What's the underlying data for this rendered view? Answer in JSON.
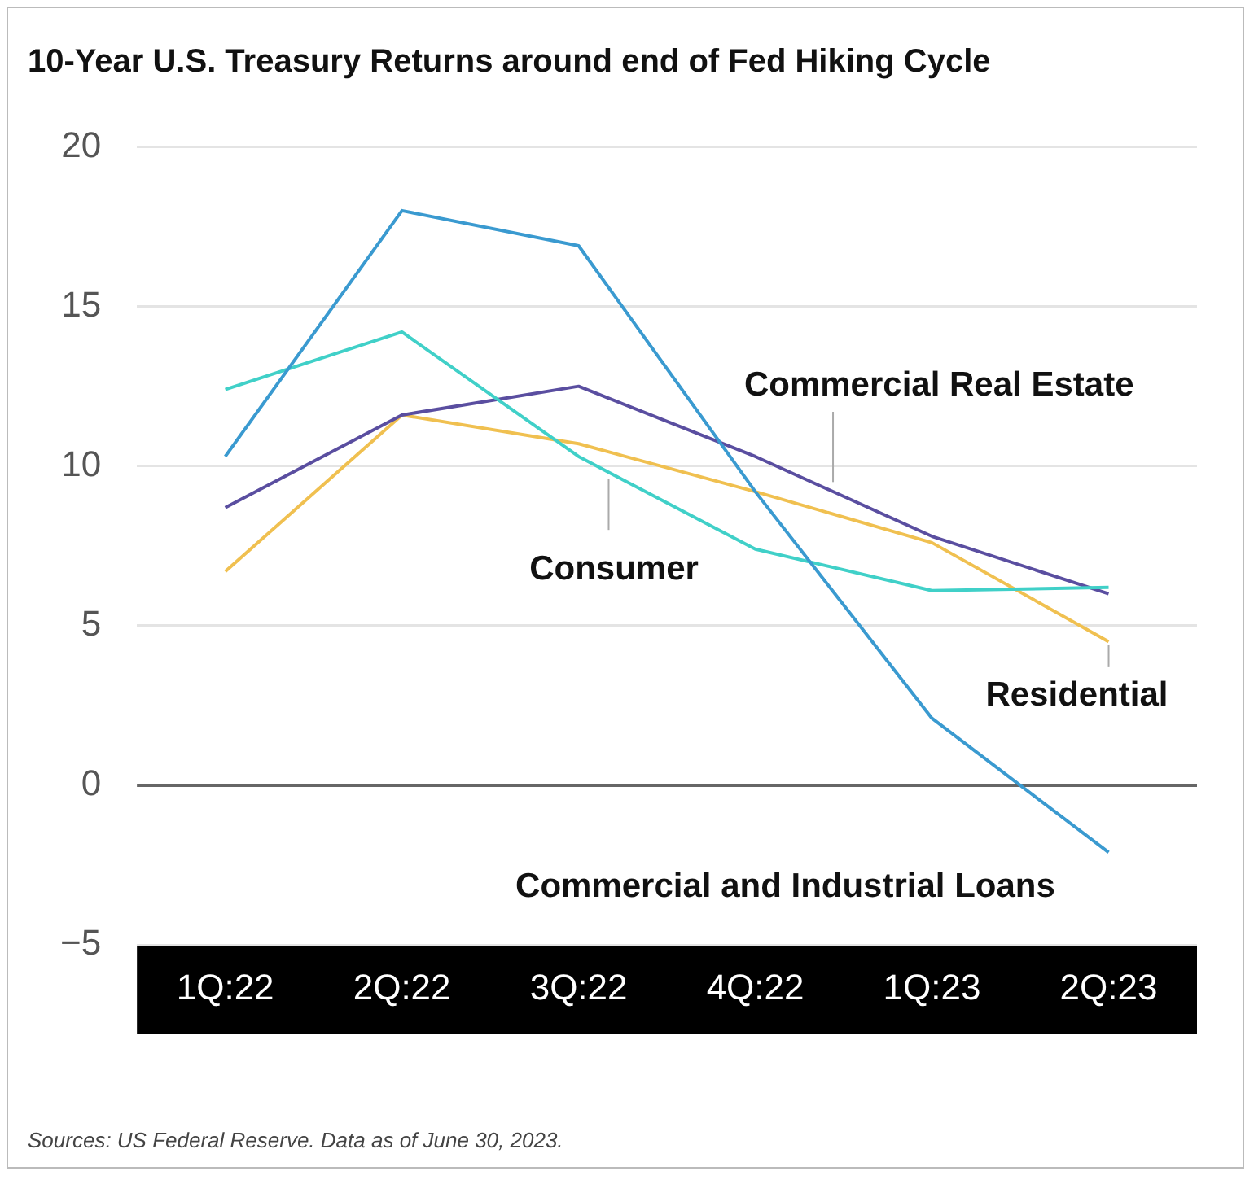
{
  "chart_data": {
    "type": "line",
    "title": "10-Year U.S. Treasury Returns around end of Fed Hiking Cycle",
    "categories": [
      "1Q:22",
      "2Q:22",
      "3Q:22",
      "4Q:22",
      "1Q:23",
      "2Q:23"
    ],
    "series": [
      {
        "name": "Commercial and Industrial Loans",
        "color": "#3a9ad0",
        "values": [
          10.3,
          18.0,
          16.9,
          9.2,
          2.1,
          -2.1
        ]
      },
      {
        "name": "Consumer",
        "color": "#40d0c8",
        "values": [
          12.4,
          14.2,
          10.3,
          7.4,
          6.1,
          6.2
        ]
      },
      {
        "name": "Commercial Real Estate",
        "color": "#5a4ea0",
        "values": [
          8.7,
          11.6,
          12.5,
          10.3,
          7.8,
          6.0
        ]
      },
      {
        "name": "Residential",
        "color": "#f0c050",
        "values": [
          6.7,
          11.6,
          10.7,
          9.2,
          7.6,
          4.5
        ]
      }
    ],
    "ylim": [
      -5,
      20
    ],
    "yticks": [
      20,
      15,
      10,
      5,
      0,
      {
        "value": -5,
        "label": "−5"
      }
    ],
    "grid": "y",
    "legend": false,
    "marker": "none",
    "line_style": "solid",
    "ref_lines": [
      {
        "axis": "y",
        "value": 0,
        "color": "#666666"
      }
    ],
    "annotations": [
      "Sources: US Federal Reserve. Data as of June 30, 2023."
    ]
  }
}
